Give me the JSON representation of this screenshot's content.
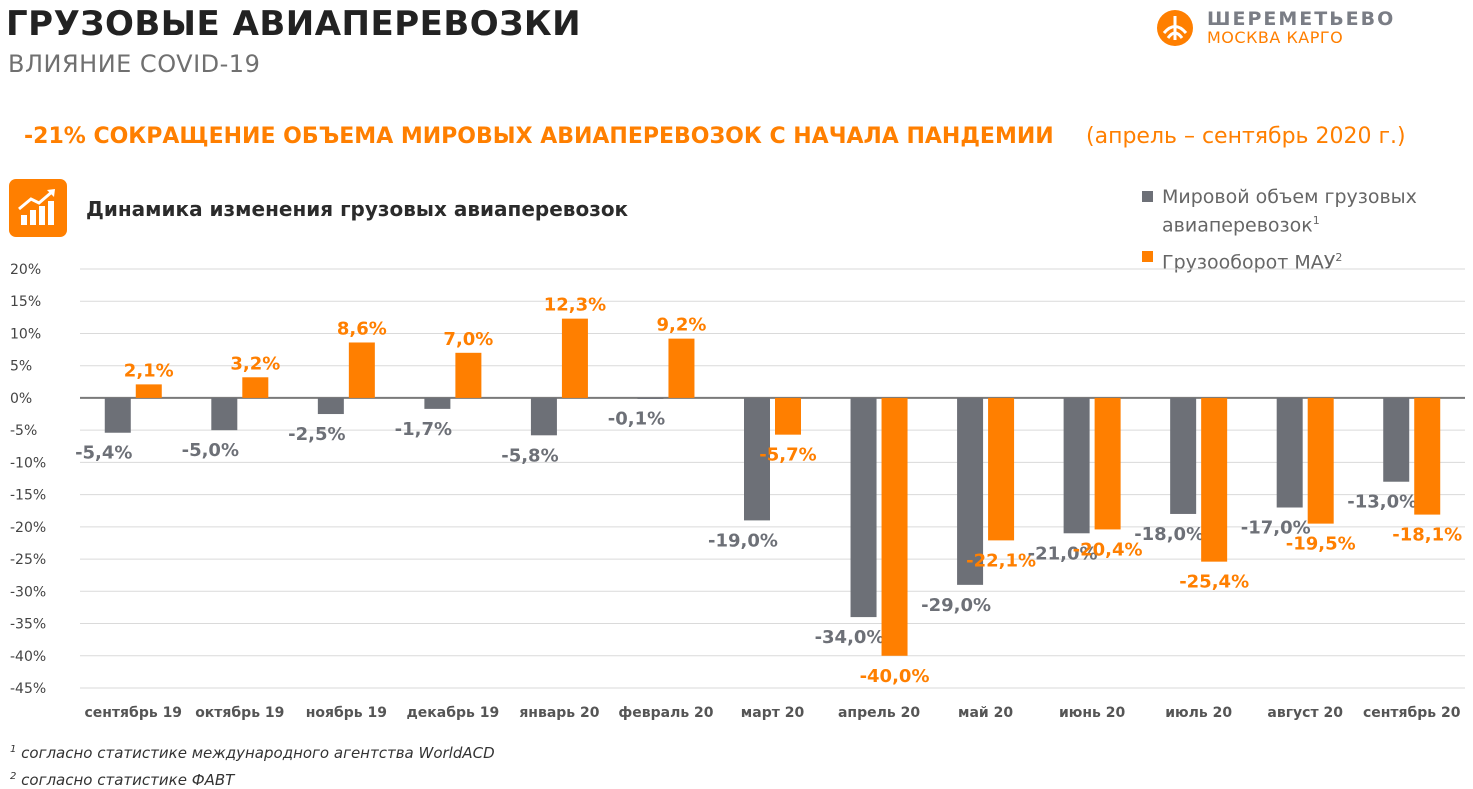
{
  "header": {
    "title": "ГРУЗОВЫЕ АВИАПЕРЕВОЗКИ",
    "subtitle": "ВЛИЯНИЕ COVID-19"
  },
  "logo": {
    "name": "ШЕРЕМЕТЬЕВО",
    "sub": "МОСКВА КАРГО"
  },
  "headline": {
    "main": "-21% СОКРАЩЕНИЕ ОБЪЕМА МИРОВЫХ АВИАПЕРЕВОЗОК С НАЧАЛА ПАНДЕМИИ",
    "period": "(апрель – сентябрь 2020 г.)"
  },
  "icons": {
    "chart_icon": "growth-bar-chart-icon",
    "logo_icon": "sheremetyevo-logo-icon"
  },
  "colors": {
    "accent": "#ff7f00",
    "world": "#6d7077",
    "mau": "#ff7f00"
  },
  "legend": {
    "world_label": "Мировой объем грузовых авиаперевозок",
    "world_sup": "1",
    "mau_label": "Грузооборот МАУ",
    "mau_sup": "2"
  },
  "chart_data": {
    "type": "bar",
    "title": "Динамика изменения грузовых авиаперевозок",
    "categories": [
      "сентябрь 19",
      "октябрь 19",
      "ноябрь 19",
      "декабрь 19",
      "январь 20",
      "февраль 20",
      "март 20",
      "апрель 20",
      "май 20",
      "июнь 20",
      "июль 20",
      "август 20",
      "сентябрь 20"
    ],
    "series": [
      {
        "name": "Мировой объем грузовых авиаперевозок",
        "values": [
          -5.4,
          -5.0,
          -2.5,
          -1.7,
          -5.8,
          -0.1,
          -19.0,
          -34.0,
          -29.0,
          -21.0,
          -18.0,
          -17.0,
          -13.0
        ],
        "labels": [
          "-5,4%",
          "-5,0%",
          "-2,5%",
          "-1,7%",
          "-5,8%",
          "-0,1%",
          "-19,0%",
          "-34,0%",
          "-29,0%",
          "-21,0%",
          "-18,0%",
          "-17,0%",
          "-13,0%"
        ]
      },
      {
        "name": "Грузооборот МАУ",
        "values": [
          2.1,
          3.2,
          8.6,
          7.0,
          12.3,
          9.2,
          -5.7,
          -40.0,
          -22.1,
          -20.4,
          -25.4,
          -19.5,
          -18.1
        ],
        "labels": [
          "2,1%",
          "3,2%",
          "8,6%",
          "7,0%",
          "12,3%",
          "9,2%",
          "-5,7%",
          "-40,0%",
          "-22,1%",
          "-20,4%",
          "-25,4%",
          "-19,5%",
          "-18,1%"
        ]
      }
    ],
    "ylim": [
      -45,
      20
    ],
    "yticks": [
      20,
      15,
      10,
      5,
      0,
      -5,
      -10,
      -15,
      -20,
      -25,
      -30,
      -35,
      -40,
      -45
    ],
    "ytick_labels": [
      "20%",
      "15%",
      "10%",
      "5%",
      "0%",
      "-5%",
      "-10%",
      "-15%",
      "-20%",
      "-25%",
      "-30%",
      "-35%",
      "-40%",
      "-45%"
    ],
    "grid": true,
    "legend_position": "top-right"
  },
  "footnotes": [
    {
      "sup": "1",
      "text": "согласно статистике международного агентства WorldACD"
    },
    {
      "sup": "2",
      "text": "согласно статистике ФАВТ"
    }
  ]
}
